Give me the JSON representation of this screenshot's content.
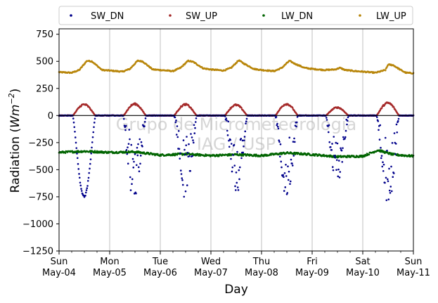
{
  "chart_data": {
    "type": "scatter",
    "title": "",
    "xlabel": "Day",
    "ylabel": "Radiation (Wm⁻²)",
    "ylabel_main": "Radiation (",
    "ylabel_unit": "Wm",
    "ylabel_exp": "−2",
    "ylabel_close": ")",
    "xlim": [
      0,
      7
    ],
    "ylim": [
      -1250,
      800
    ],
    "yticks": [
      -1250,
      -1000,
      -750,
      -500,
      -250,
      0,
      250,
      500,
      750
    ],
    "ytick_labels": [
      "−1250",
      "−1000",
      "−750",
      "−500",
      "−250",
      "0",
      "250",
      "500",
      "750"
    ],
    "xticks": [
      {
        "x": 0,
        "day": "Sun",
        "date": "May-04"
      },
      {
        "x": 1,
        "day": "Mon",
        "date": "May-05"
      },
      {
        "x": 2,
        "day": "Tue",
        "date": "May-06"
      },
      {
        "x": 3,
        "day": "Wed",
        "date": "May-07"
      },
      {
        "x": 4,
        "day": "Thu",
        "date": "May-08"
      },
      {
        "x": 5,
        "day": "Fri",
        "date": "May-09"
      },
      {
        "x": 6,
        "day": "Sat",
        "date": "May-10"
      },
      {
        "x": 7,
        "day": "Sun",
        "date": "May-11"
      }
    ],
    "grid": "vertical",
    "zero_line": true,
    "legend": {
      "placement": "top",
      "columns": 4
    },
    "watermark": [
      "Grupo de Micrometeorologia",
      "IAG / USP"
    ],
    "series": [
      {
        "name": "SW_DN",
        "color": "#00008b",
        "baseline": 0,
        "daylight_start": 0.27,
        "daylight_end": 0.72,
        "daily_min": [
          -760,
          -790,
          -780,
          -720,
          -770,
          -630,
          -850
        ],
        "daily_peak_fraction": [
          0.5,
          0.55,
          0.48,
          0.45,
          0.48,
          0.52,
          0.47
        ],
        "pattern": "clear day on May-04; scattered cloudy points on later days"
      },
      {
        "name": "SW_UP",
        "color": "#a52a2a",
        "baseline": 0,
        "daylight_start": 0.27,
        "daylight_end": 0.72,
        "daily_max": [
          110,
          115,
          110,
          105,
          115,
          80,
          125
        ]
      },
      {
        "name": "LW_DN",
        "color": "#006400",
        "points": [
          [
            0,
            -340
          ],
          [
            0.5,
            -330
          ],
          [
            1,
            -340
          ],
          [
            1.5,
            -335
          ],
          [
            2,
            -365
          ],
          [
            2.5,
            -355
          ],
          [
            3,
            -370
          ],
          [
            3.5,
            -360
          ],
          [
            4,
            -370
          ],
          [
            4.5,
            -345
          ],
          [
            5,
            -360
          ],
          [
            5.5,
            -380
          ],
          [
            6,
            -375
          ],
          [
            6.3,
            -320
          ],
          [
            6.6,
            -360
          ],
          [
            7,
            -375
          ]
        ]
      },
      {
        "name": "LW_UP",
        "color": "#b8860b",
        "points": [
          [
            0,
            400
          ],
          [
            0.25,
            395
          ],
          [
            0.4,
            420
          ],
          [
            0.55,
            505
          ],
          [
            0.65,
            500
          ],
          [
            0.85,
            420
          ],
          [
            1,
            415
          ],
          [
            1.25,
            405
          ],
          [
            1.4,
            430
          ],
          [
            1.55,
            505
          ],
          [
            1.65,
            500
          ],
          [
            1.85,
            425
          ],
          [
            2,
            420
          ],
          [
            2.25,
            410
          ],
          [
            2.4,
            440
          ],
          [
            2.55,
            505
          ],
          [
            2.65,
            495
          ],
          [
            2.85,
            435
          ],
          [
            3,
            425
          ],
          [
            3.25,
            415
          ],
          [
            3.4,
            440
          ],
          [
            3.55,
            510
          ],
          [
            3.65,
            480
          ],
          [
            3.85,
            430
          ],
          [
            4,
            420
          ],
          [
            4.25,
            410
          ],
          [
            4.4,
            440
          ],
          [
            4.55,
            505
          ],
          [
            4.65,
            480
          ],
          [
            4.85,
            440
          ],
          [
            5,
            430
          ],
          [
            5.25,
            420
          ],
          [
            5.45,
            425
          ],
          [
            5.55,
            440
          ],
          [
            5.65,
            420
          ],
          [
            5.85,
            410
          ],
          [
            6,
            405
          ],
          [
            6.25,
            395
          ],
          [
            6.45,
            420
          ],
          [
            6.5,
            470
          ],
          [
            6.6,
            465
          ],
          [
            6.75,
            420
          ],
          [
            6.85,
            395
          ],
          [
            7,
            390
          ]
        ]
      }
    ]
  }
}
